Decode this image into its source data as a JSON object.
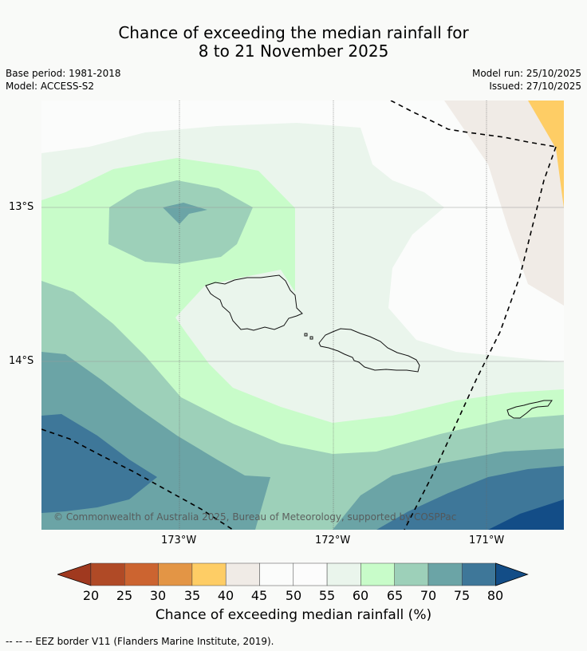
{
  "title_line1": "Chance of exceeding the median rainfall for",
  "title_line2": "8 to 21 November 2025",
  "base_period": "Base period: 1981-2018",
  "model": "Model: ACCESS-S2",
  "model_run": "Model run: 25/10/2025",
  "issued": "Issued: 27/10/2025",
  "lat_ticks": [
    "13°S",
    "14°S"
  ],
  "lon_ticks": [
    "173°W",
    "172°W",
    "171°W"
  ],
  "copyright": "© Commonwealth of Australia 2025, Bureau of Meteorology, supported by COSPPac",
  "colorbar": {
    "label": "Chance of exceeding median rainfall (%)",
    "ticks": [
      "20",
      "25",
      "30",
      "35",
      "40",
      "45",
      "50",
      "55",
      "60",
      "65",
      "70",
      "75",
      "80"
    ],
    "colors": [
      "#a0391f",
      "#b04a26",
      "#cc6430",
      "#e39545",
      "#fecd65",
      "#f0ebe6",
      "#fbfcfb",
      "#fcfcfc",
      "#eaf5ec",
      "#c8fcc9",
      "#9dd0b9",
      "#6ba4a6",
      "#3e7799",
      "#134d87"
    ]
  },
  "footnote": "--  --  -- EEZ border V11 (Flanders Marine Institute, 2019)."
}
